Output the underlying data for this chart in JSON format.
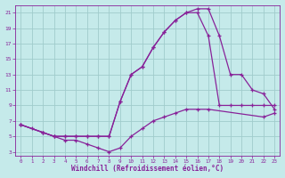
{
  "background_color": "#c5eaea",
  "grid_color": "#a0cccc",
  "line_color": "#882299",
  "xlabel": "Windchill (Refroidissement éolien,°C)",
  "xlim": [
    -0.5,
    23.5
  ],
  "ylim": [
    2.5,
    22.0
  ],
  "xticks": [
    0,
    1,
    2,
    3,
    4,
    5,
    6,
    7,
    8,
    9,
    10,
    11,
    12,
    13,
    14,
    15,
    16,
    17,
    18,
    19,
    20,
    21,
    22,
    23
  ],
  "yticks": [
    3,
    5,
    7,
    9,
    11,
    13,
    15,
    17,
    19,
    21
  ],
  "curve_a_x": [
    0,
    1,
    2,
    3,
    4,
    5,
    6,
    7,
    8,
    9,
    10,
    11,
    12,
    13,
    14,
    15,
    16,
    17,
    22,
    23
  ],
  "curve_a_y": [
    6.5,
    6.0,
    5.5,
    5.0,
    4.5,
    4.5,
    4.0,
    3.5,
    3.0,
    3.5,
    5.0,
    6.0,
    7.0,
    7.5,
    8.0,
    8.5,
    8.5,
    8.5,
    7.5,
    8.0
  ],
  "curve_b_x": [
    0,
    2,
    3,
    4,
    5,
    6,
    7,
    8,
    9,
    10,
    11,
    12,
    13,
    14,
    15,
    16,
    17,
    18,
    19,
    20,
    21,
    22,
    23
  ],
  "curve_b_y": [
    6.5,
    5.5,
    5.0,
    5.0,
    5.0,
    5.0,
    5.0,
    5.0,
    9.5,
    13.0,
    14.0,
    16.5,
    18.5,
    20.0,
    21.0,
    21.0,
    18.0,
    9.0,
    9.0,
    9.0,
    9.0,
    9.0,
    9.0
  ],
  "curve_c_x": [
    0,
    2,
    3,
    4,
    5,
    6,
    7,
    8,
    9,
    10,
    11,
    12,
    13,
    14,
    15,
    16,
    17,
    18,
    19,
    20,
    21,
    22,
    23
  ],
  "curve_c_y": [
    6.5,
    5.5,
    5.0,
    5.0,
    5.0,
    5.0,
    5.0,
    5.0,
    9.5,
    13.0,
    14.0,
    16.5,
    18.5,
    20.0,
    21.0,
    21.5,
    21.5,
    18.0,
    13.0,
    13.0,
    11.0,
    10.5,
    8.5
  ]
}
